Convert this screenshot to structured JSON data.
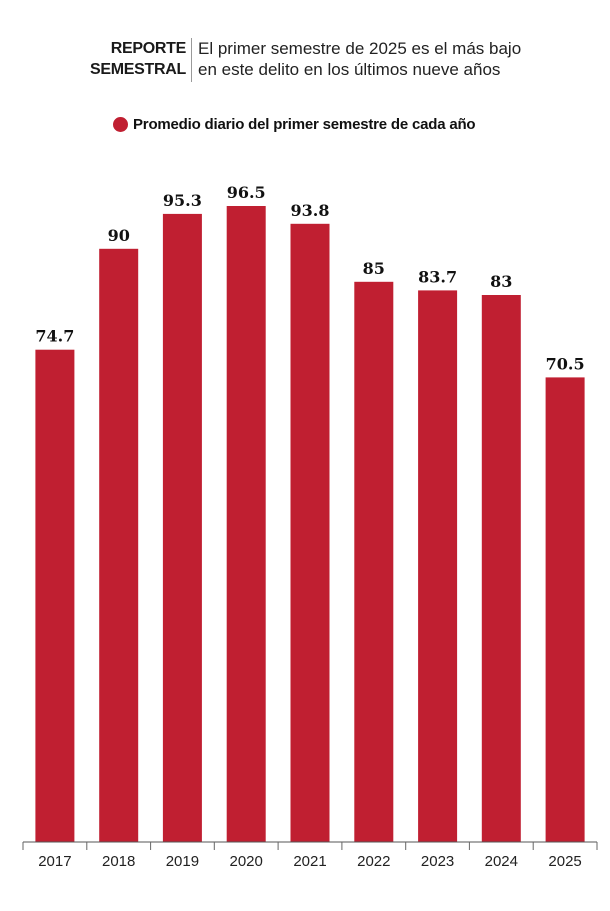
{
  "header": {
    "kicker_line1": "REPORTE",
    "kicker_line2": "SEMESTRAL",
    "subtitle_line1": "El primer semestre de 2025 es el más bajo",
    "subtitle_line2": "en este delito en los últimos nueve años"
  },
  "legend": {
    "label": "Promedio diario del primer semestre de cada año",
    "color": "#c01f31"
  },
  "chart_data": {
    "type": "bar",
    "title": "",
    "xlabel": "",
    "ylabel": "",
    "categories": [
      "2017",
      "2018",
      "2019",
      "2020",
      "2021",
      "2022",
      "2023",
      "2024",
      "2025"
    ],
    "series": [
      {
        "name": "Promedio diario del primer semestre de cada año",
        "values": [
          74.7,
          90,
          95.3,
          96.5,
          93.8,
          85,
          83.7,
          83,
          70.5
        ],
        "labels": [
          "74.7",
          "90",
          "95.3",
          "96.5",
          "93.8",
          "85",
          "83.7",
          "83",
          "70.5"
        ]
      }
    ],
    "ylim": [
      0,
      100
    ],
    "bar_color": "#c01f31",
    "grid": false,
    "legend_position": "top"
  }
}
